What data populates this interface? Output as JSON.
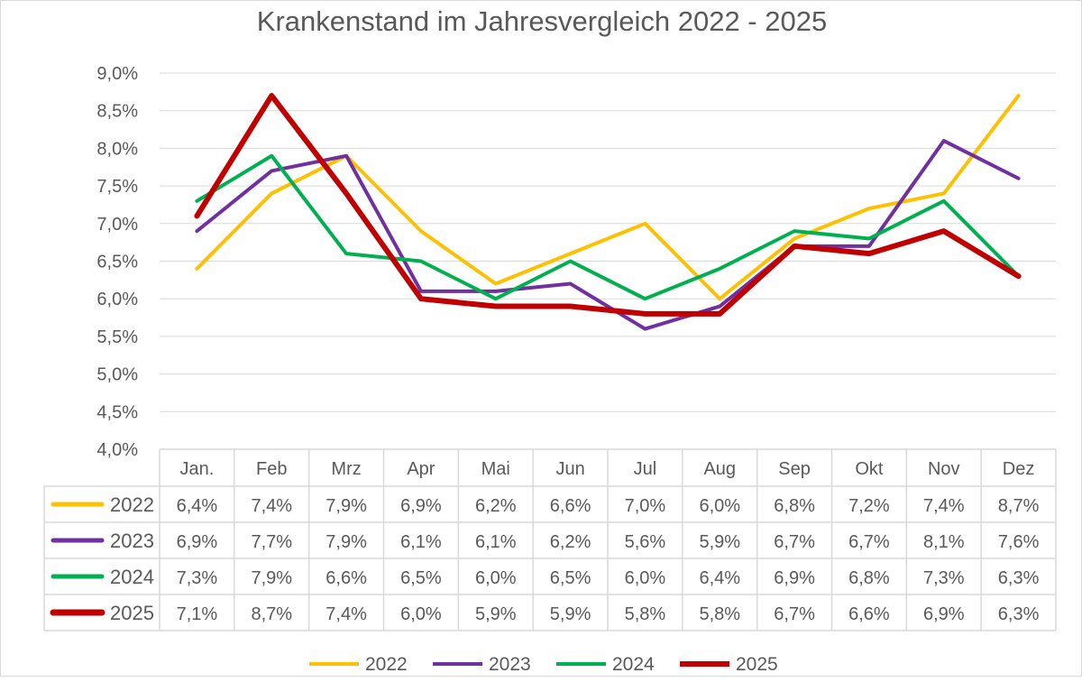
{
  "chart_data": {
    "type": "line",
    "title": "Krankenstand im Jahresvergleich 2022 - 2025",
    "xlabel": "",
    "ylabel": "",
    "ylim": [
      4.0,
      9.0
    ],
    "yticks": [
      "4,0%",
      "4,5%",
      "5,0%",
      "5,5%",
      "6,0%",
      "6,5%",
      "7,0%",
      "7,5%",
      "8,0%",
      "8,5%",
      "9,0%"
    ],
    "ytick_values": [
      4.0,
      4.5,
      5.0,
      5.5,
      6.0,
      6.5,
      7.0,
      7.5,
      8.0,
      8.5,
      9.0
    ],
    "grid": true,
    "legend_position": "bottom",
    "categories": [
      "Jan.",
      "Feb",
      "Mrz",
      "Apr",
      "Mai",
      "Jun",
      "Jul",
      "Aug",
      "Sep",
      "Okt",
      "Nov",
      "Dez"
    ],
    "series": [
      {
        "name": "2022",
        "color": "#FFC000",
        "values": [
          6.4,
          7.4,
          7.9,
          6.9,
          6.2,
          6.6,
          7.0,
          6.0,
          6.8,
          7.2,
          7.4,
          8.7
        ],
        "labels": [
          "6,4%",
          "7,4%",
          "7,9%",
          "6,9%",
          "6,2%",
          "6,6%",
          "7,0%",
          "6,0%",
          "6,8%",
          "7,2%",
          "7,4%",
          "8,7%"
        ]
      },
      {
        "name": "2023",
        "color": "#7030A0",
        "values": [
          6.9,
          7.7,
          7.9,
          6.1,
          6.1,
          6.2,
          5.6,
          5.9,
          6.7,
          6.7,
          8.1,
          7.6
        ],
        "labels": [
          "6,9%",
          "7,7%",
          "7,9%",
          "6,1%",
          "6,1%",
          "6,2%",
          "5,6%",
          "5,9%",
          "6,7%",
          "6,7%",
          "8,1%",
          "7,6%"
        ]
      },
      {
        "name": "2024",
        "color": "#00B050",
        "values": [
          7.3,
          7.9,
          6.6,
          6.5,
          6.0,
          6.5,
          6.0,
          6.4,
          6.9,
          6.8,
          7.3,
          6.3
        ],
        "labels": [
          "7,3%",
          "7,9%",
          "6,6%",
          "6,5%",
          "6,0%",
          "6,5%",
          "6,0%",
          "6,4%",
          "6,9%",
          "6,8%",
          "7,3%",
          "6,3%"
        ]
      },
      {
        "name": "2025",
        "color": "#C00000",
        "values": [
          7.1,
          8.7,
          7.4,
          6.0,
          5.9,
          5.9,
          5.8,
          5.8,
          6.7,
          6.6,
          6.9,
          6.3
        ],
        "labels": [
          "7,1%",
          "8,7%",
          "7,4%",
          "6,0%",
          "5,9%",
          "5,9%",
          "5,8%",
          "5,8%",
          "6,7%",
          "6,6%",
          "6,9%",
          "6,3%"
        ]
      }
    ]
  }
}
